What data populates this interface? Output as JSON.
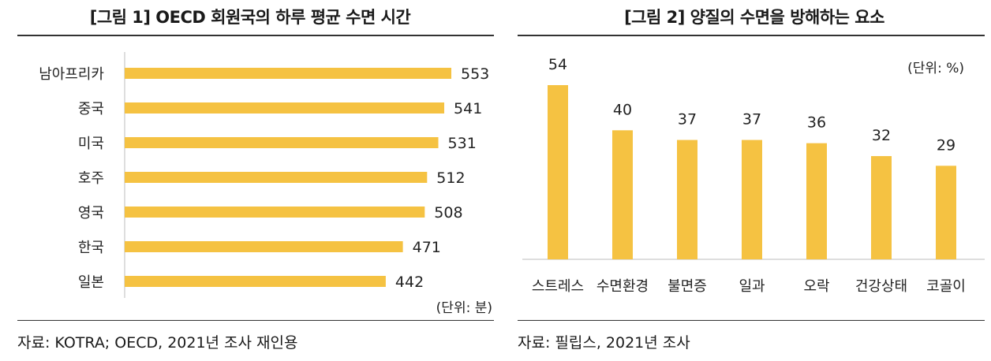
{
  "colors": {
    "bar": "#F5C242",
    "text": "#222222",
    "rule": "#333333"
  },
  "chart1": {
    "title": "[그림 1] OECD 회원국의 하루 평균 수면 시간",
    "unit": "(단위: 분)",
    "source": "자료: KOTRA; OECD, 2021년 조사 재인용",
    "chart_data": {
      "type": "bar",
      "orientation": "horizontal",
      "categories": [
        "남아프리카",
        "중국",
        "미국",
        "호주",
        "영국",
        "한국",
        "일본"
      ],
      "values": [
        553,
        541,
        531,
        512,
        508,
        471,
        442
      ],
      "xlim": [
        0,
        553
      ],
      "title": "OECD 회원국의 하루 평균 수면 시간",
      "unit": "분"
    }
  },
  "chart2": {
    "title": "[그림 2] 양질의 수면을 방해하는 요소",
    "unit": "(단위: %)",
    "source": "자료: 필립스, 2021년 조사",
    "chart_data": {
      "type": "bar",
      "orientation": "vertical",
      "categories": [
        "스트레스",
        "수면환경",
        "불면증",
        "일과",
        "오락",
        "건강상태",
        "코골이"
      ],
      "values": [
        54,
        40,
        37,
        37,
        36,
        32,
        29
      ],
      "ylim": [
        0,
        54
      ],
      "title": "양질의 수면을 방해하는 요소",
      "unit": "%"
    }
  }
}
